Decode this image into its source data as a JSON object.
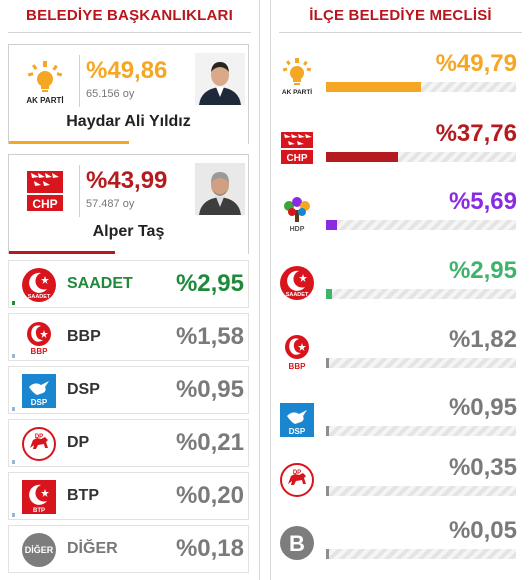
{
  "left": {
    "title": "BELEDİYE BAŞKANLIKLARI",
    "candidates": [
      {
        "party": "AK PARTİ",
        "percent": "%49,86",
        "votes": "65.156 oy",
        "name": "Haydar Ali Yıldız",
        "color": "#f5a623",
        "share": 49.86
      },
      {
        "party": "CHP",
        "percent": "%43,99",
        "votes": "57.487 oy",
        "name": "Alper Taş",
        "color": "#b51a1f",
        "share": 43.99
      }
    ],
    "parties": [
      {
        "logo": "SAADET",
        "name": "SAADET",
        "percent": "%2,95",
        "name_color": "#1f8a3a",
        "pct_color": "#1f8a3a",
        "mini_color": "#1f8a3a"
      },
      {
        "logo": "BBP",
        "name": "BBP",
        "percent": "%1,58",
        "name_color": "#333333",
        "pct_color": "#7a7a7a",
        "mini_color": "#9db4cf"
      },
      {
        "logo": "DSP",
        "name": "DSP",
        "percent": "%0,95",
        "name_color": "#333333",
        "pct_color": "#7a7a7a",
        "mini_color": "#9db4cf"
      },
      {
        "logo": "DP",
        "name": "DP",
        "percent": "%0,21",
        "name_color": "#333333",
        "pct_color": "#7a7a7a",
        "mini_color": "#9db4cf"
      },
      {
        "logo": "BTP",
        "name": "BTP",
        "percent": "%0,20",
        "name_color": "#333333",
        "pct_color": "#7a7a7a",
        "mini_color": "#9db4cf"
      },
      {
        "logo": "DİĞER",
        "name": "DİĞER",
        "percent": "%0,18",
        "name_color": "#777777",
        "pct_color": "#7a7a7a",
        "mini_color": "#cccccc"
      }
    ]
  },
  "right": {
    "title": "İLÇE BELEDİYE MECLİSİ",
    "rows": [
      {
        "logo": "AK PARTİ",
        "percent": "%49,79",
        "share": 49.79,
        "color": "#f5a623"
      },
      {
        "logo": "CHP",
        "percent": "%37,76",
        "share": 37.76,
        "color": "#b51a1f"
      },
      {
        "logo": "HDP",
        "percent": "%5,69",
        "share": 5.69,
        "color": "#8a2be2"
      },
      {
        "logo": "SAADET",
        "percent": "%2,95",
        "share": 2.95,
        "color": "#3db36b"
      },
      {
        "logo": "BBP",
        "percent": "%1,82",
        "share": 1.82,
        "color": "#8e8e8e"
      },
      {
        "logo": "DSP",
        "percent": "%0,95",
        "share": 0.95,
        "color": "#8e8e8e"
      },
      {
        "logo": "DP",
        "percent": "%0,35",
        "share": 0.35,
        "color": "#8e8e8e"
      },
      {
        "logo": "B",
        "percent": "%0,05",
        "share": 0.05,
        "color": "#8e8e8e"
      }
    ]
  }
}
